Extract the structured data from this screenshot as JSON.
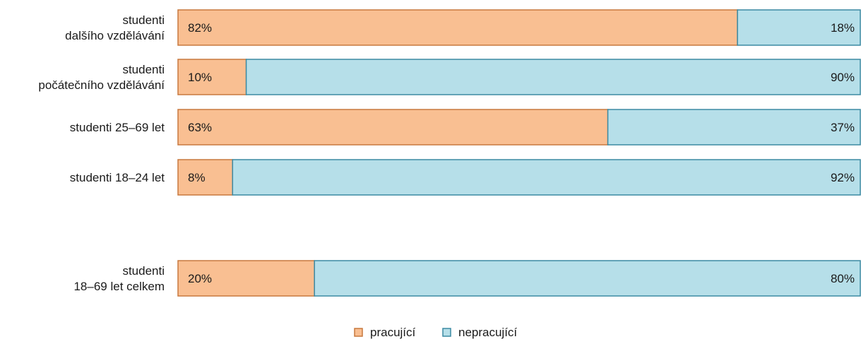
{
  "chart_data": {
    "type": "bar",
    "orientation": "horizontal",
    "stacked": "100%",
    "categories": [
      [
        "studenti",
        "dalšího vzdělávání"
      ],
      [
        "studenti",
        "počátečního vzdělávání"
      ],
      [
        "studenti 25–69 let"
      ],
      [
        "studenti 18–24 let"
      ],
      [
        "studenti",
        "18–69 let celkem"
      ]
    ],
    "series": [
      {
        "name": "pracující",
        "color": "#f9bf92",
        "stroke": "#c8783e",
        "values": [
          82,
          10,
          63,
          8,
          20
        ],
        "labels": [
          "82%",
          "10%",
          "63%",
          "8%",
          "20%"
        ]
      },
      {
        "name": "nepracující",
        "color": "#b6dfe9",
        "stroke": "#3c8aa3",
        "values": [
          18,
          90,
          37,
          92,
          80
        ],
        "labels": [
          "18%",
          "90%",
          "37%",
          "92%",
          "80%"
        ]
      }
    ],
    "xlim": [
      0,
      100
    ],
    "grid": false,
    "legend": "bottom-center"
  }
}
